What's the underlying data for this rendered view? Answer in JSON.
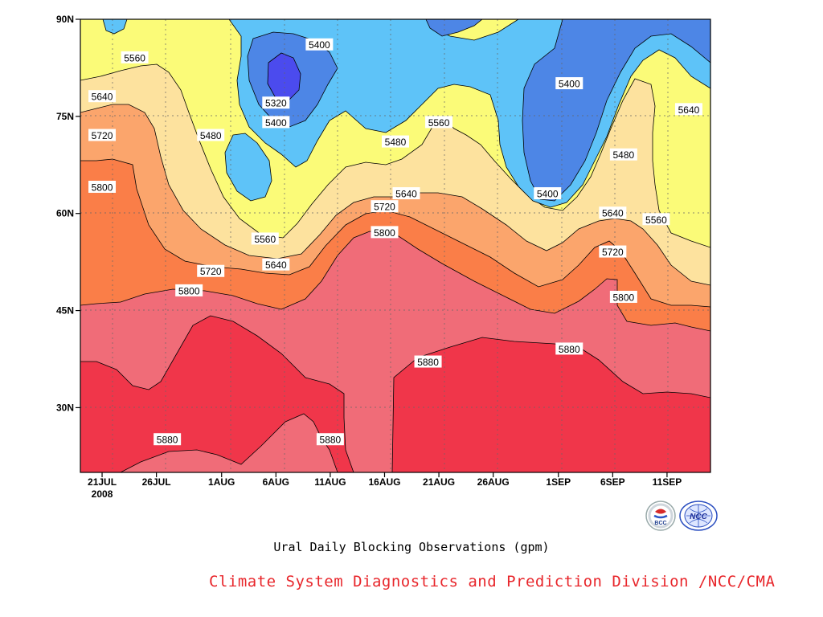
{
  "chart_data": {
    "type": "heatmap",
    "subtype": "filled contour (latitude vs time)",
    "title": "Ural Daily Blocking Observations (gpm)",
    "y_axis": {
      "ticks": [
        "30N",
        "45N",
        "60N",
        "75N",
        "90N"
      ],
      "range_deg": [
        20,
        90
      ]
    },
    "x_axis": {
      "ticks": [
        "21JUL",
        "26JUL",
        "1AUG",
        "6AUG",
        "11AUG",
        "16AUG",
        "21AUG",
        "26AUG",
        "1SEP",
        "6SEP",
        "11SEP"
      ],
      "year_label": "2008",
      "range_dates": [
        "2008-07-19",
        "2008-09-15"
      ]
    },
    "contour_levels_gpm": [
      5320,
      5400,
      5480,
      5560,
      5640,
      5720,
      5800,
      5880
    ],
    "fill_colors": {
      "below_5320": "#4b4bee",
      "5320_5400": "#4d86e6",
      "5400_5480": "#5ec3f8",
      "5480_5560": "#fbfb78",
      "5560_5640": "#fde29e",
      "5640_5720": "#fba56c",
      "5720_5800": "#fa7e48",
      "5800_5880": "#f06c78",
      "above_5880": "#f0364a"
    },
    "contour_labels": [
      {
        "value": "5560",
        "date": "2008-07-24",
        "lat": 84
      },
      {
        "value": "5640",
        "date": "2008-07-21",
        "lat": 78
      },
      {
        "value": "5720",
        "date": "2008-07-21",
        "lat": 72
      },
      {
        "value": "5800",
        "date": "2008-07-21",
        "lat": 64
      },
      {
        "value": "5400",
        "date": "2008-08-10",
        "lat": 86
      },
      {
        "value": "5320",
        "date": "2008-08-06",
        "lat": 77
      },
      {
        "value": "5400",
        "date": "2008-08-06",
        "lat": 74
      },
      {
        "value": "5480",
        "date": "2008-07-31",
        "lat": 72
      },
      {
        "value": "5560",
        "date": "2008-08-05",
        "lat": 56
      },
      {
        "value": "5640",
        "date": "2008-08-06",
        "lat": 52
      },
      {
        "value": "5720",
        "date": "2008-07-31",
        "lat": 51
      },
      {
        "value": "5800",
        "date": "2008-07-29",
        "lat": 48
      },
      {
        "value": "5480",
        "date": "2008-08-17",
        "lat": 71
      },
      {
        "value": "5560",
        "date": "2008-08-21",
        "lat": 74
      },
      {
        "value": "5640",
        "date": "2008-08-18",
        "lat": 63
      },
      {
        "value": "5720",
        "date": "2008-08-16",
        "lat": 61
      },
      {
        "value": "5800",
        "date": "2008-08-16",
        "lat": 57
      },
      {
        "value": "5400",
        "date": "2008-09-02",
        "lat": 80
      },
      {
        "value": "5400",
        "date": "2008-08-31",
        "lat": 63
      },
      {
        "value": "5480",
        "date": "2008-09-07",
        "lat": 69
      },
      {
        "value": "5640",
        "date": "2008-09-13",
        "lat": 76
      },
      {
        "value": "5640",
        "date": "2008-09-06",
        "lat": 60
      },
      {
        "value": "5560",
        "date": "2008-09-10",
        "lat": 59
      },
      {
        "value": "5720",
        "date": "2008-09-06",
        "lat": 54
      },
      {
        "value": "5800",
        "date": "2008-09-07",
        "lat": 47
      },
      {
        "value": "5880",
        "date": "2008-09-02",
        "lat": 39
      },
      {
        "value": "5880",
        "date": "2008-08-20",
        "lat": 37
      },
      {
        "value": "5880",
        "date": "2008-07-27",
        "lat": 25
      },
      {
        "value": "5880",
        "date": "2008-08-11",
        "lat": 25
      }
    ]
  },
  "footer": {
    "title": "Ural Daily Blocking Observations (gpm)",
    "credit": "Climate System Diagnostics and Prediction Division /NCC/CMA"
  },
  "logos": [
    {
      "name": "bcc-logo",
      "text": "BCC"
    },
    {
      "name": "ncc-logo",
      "text": "NCC"
    }
  ]
}
